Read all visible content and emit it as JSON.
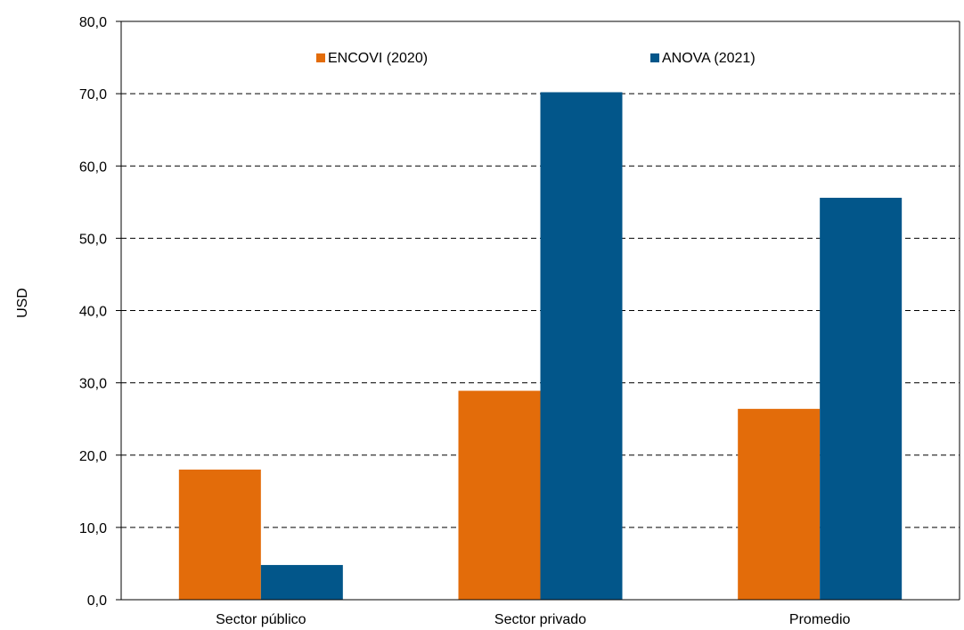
{
  "chart_data": {
    "type": "bar",
    "title": "",
    "xlabel": "",
    "ylabel": "USD",
    "ylim": [
      0,
      80
    ],
    "yticks": [
      "0,0",
      "10,0",
      "20,0",
      "30,0",
      "40,0",
      "50,0",
      "60,0",
      "70,0",
      "80,0"
    ],
    "grid": "horizontal dashed",
    "legend_position": "top",
    "categories": [
      "Sector público",
      "Sector privado",
      "Promedio"
    ],
    "series": [
      {
        "name": "ENCOVI (2020)",
        "values": [
          18.0,
          28.9,
          26.4
        ],
        "color": "#e36c0a"
      },
      {
        "name": "ANOVA (2021)",
        "values": [
          4.8,
          70.2,
          55.6
        ],
        "color": "#02568a"
      }
    ]
  }
}
